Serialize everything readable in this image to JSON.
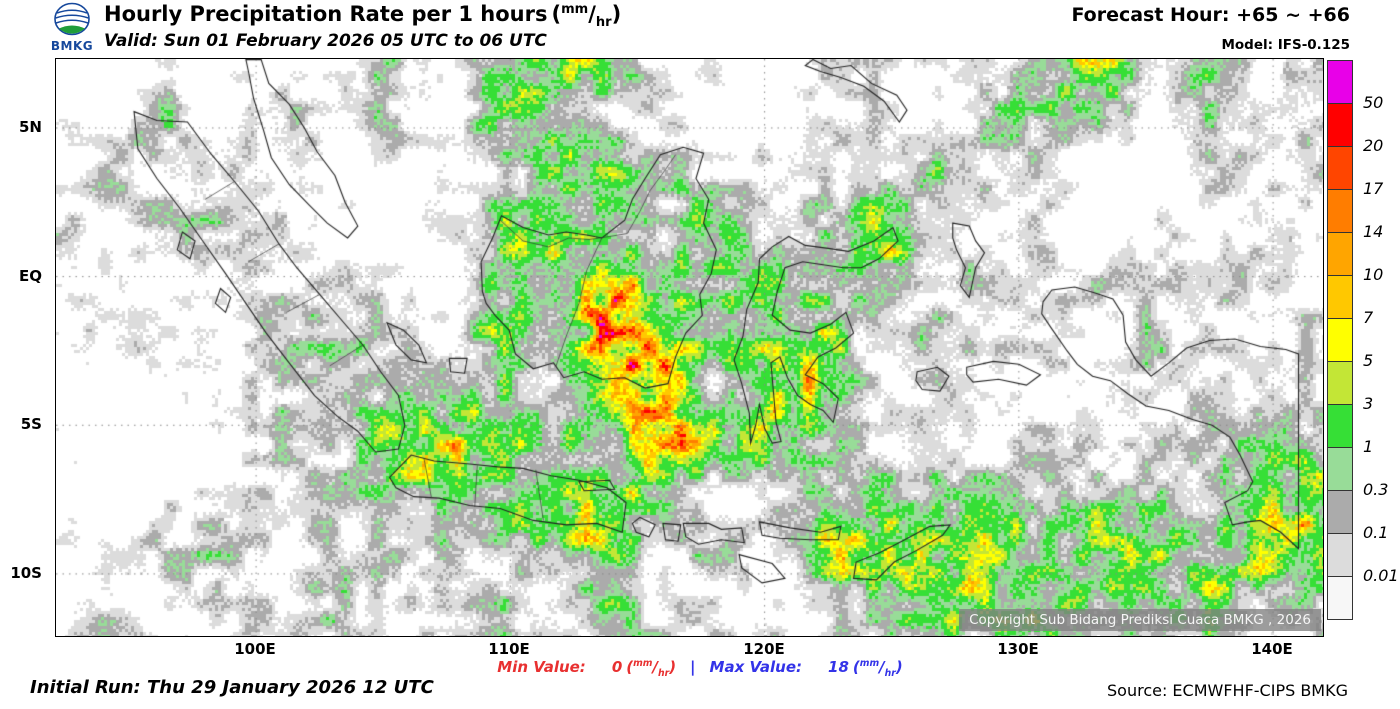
{
  "header": {
    "logo_label": "BMKG",
    "title": "Hourly Precipitation Rate per 1 hours",
    "valid_line": "Valid: Sun 01 February 2026 05 UTC to 06 UTC",
    "forecast_hour": "Forecast Hour: +65 ~ +66",
    "model": "Model: IFS-0.125"
  },
  "units": {
    "open": "(",
    "numerator": "mm",
    "slash": "/",
    "denominator": "hr",
    "close": ")"
  },
  "axes": {
    "lat_labels": [
      "5N",
      "EQ",
      "5S",
      "10S"
    ],
    "lon_labels": [
      "100E",
      "110E",
      "120E",
      "130E",
      "140E"
    ]
  },
  "legend": {
    "labels": [
      "50",
      "20",
      "17",
      "14",
      "10",
      "7",
      "5",
      "3",
      "1",
      "0.3",
      "0.1",
      "0.01"
    ],
    "colors": [
      "#E800E8",
      "#FF0000",
      "#FF4500",
      "#FF7D00",
      "#FFA500",
      "#FFC800",
      "#FFFF00",
      "#C3E636",
      "#36DF36",
      "#98DC98",
      "#ABABAB",
      "#DCDCDC",
      "#F7F7F7"
    ]
  },
  "map": {
    "copyright": "Copyright Sub Bidang Prediksi Cuaca BMKG , 2026",
    "sea_color": "#FFFFFF",
    "coast_color": "#222222",
    "grid_color": "#888888"
  },
  "footer": {
    "initial_run": "Initial Run: Thu 29 January 2026 12 UTC",
    "min_label": "Min Value:",
    "min_value": "0",
    "separator": "|",
    "max_label": "Max Value:",
    "max_value": "18",
    "min_color": "#E83030",
    "max_color": "#3333E8",
    "source": "Source: ECMWFHF-CIPS BMKG"
  }
}
